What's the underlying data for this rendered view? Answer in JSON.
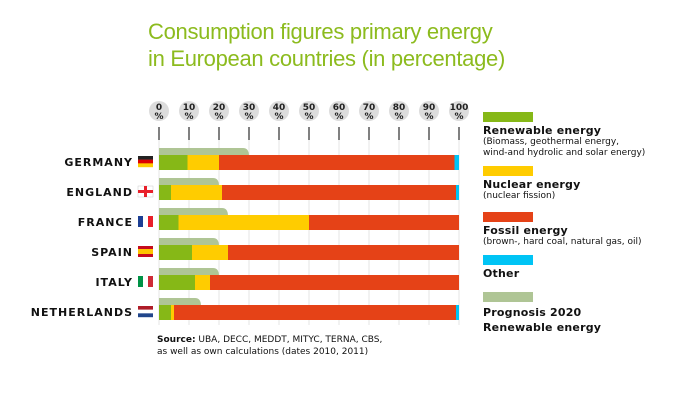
{
  "chart_data": {
    "type": "bar",
    "orientation": "horizontal",
    "stacked": true,
    "title": "Consumption figures primary energy in European countries (in percentage)",
    "title_lines": [
      "Consumption figures primary energy",
      "in European countries (in percentage)"
    ],
    "xlabel": "",
    "ylabel": "",
    "xlim": [
      0,
      100
    ],
    "x_ticks": [
      0,
      10,
      20,
      30,
      40,
      50,
      60,
      70,
      80,
      90,
      100
    ],
    "x_tick_labels": [
      "0\n%",
      "10\n%",
      "20\n%",
      "30\n%",
      "40\n%",
      "50\n%",
      "60\n%",
      "70\n%",
      "80\n%",
      "90\n%",
      "100\n%"
    ],
    "grid": true,
    "legend_position": "right",
    "categories": [
      "GERMANY",
      "ENGLAND",
      "FRANCE",
      "SPAIN",
      "ITALY",
      "NETHERLANDS"
    ],
    "series": [
      {
        "name": "Renewable energy",
        "color": "#86b817",
        "values": [
          9.5,
          4,
          6.5,
          11,
          12,
          4
        ]
      },
      {
        "name": "Nuclear energy",
        "color": "#ffcc00",
        "values": [
          10.5,
          17,
          43.5,
          12,
          5,
          1
        ]
      },
      {
        "name": "Fossil energy",
        "color": "#e54217",
        "values": [
          78.5,
          78,
          50,
          77,
          83,
          94
        ]
      },
      {
        "name": "Other",
        "color": "#00c4f5",
        "values": [
          1.5,
          1,
          0,
          0,
          0,
          1
        ]
      }
    ],
    "prognosis": {
      "name": "Prognosis 2020 Renewable energy",
      "color": "#afc595",
      "values": [
        30,
        20,
        23,
        20,
        20,
        14
      ]
    }
  },
  "flags": {
    "GERMANY": [
      "#222222",
      "#dd0000",
      "#ffcc00"
    ],
    "ENGLAND": "cross",
    "FRANCE": [
      "#1c3f94",
      "#ffffff",
      "#e8202a"
    ],
    "SPAIN": [
      "#c60b1e",
      "#ffc400",
      "#c60b1e"
    ],
    "ITALY": [
      "#009246",
      "#ffffff",
      "#ce2b37"
    ],
    "NETHERLANDS": [
      "#ae1c28",
      "#ffffff",
      "#21468b"
    ]
  },
  "legend": [
    {
      "color": "#86b817",
      "title": "Renewable energy",
      "desc": [
        "(Biomass, geothermal energy,",
        "wind-and hydrolic and solar energy)"
      ]
    },
    {
      "color": "#ffcc00",
      "title": "Nuclear energy",
      "desc": [
        "(nuclear fission)"
      ]
    },
    {
      "color": "#e54217",
      "title": "Fossil energy",
      "desc": [
        "(brown-, hard coal, natural gas, oil)"
      ]
    },
    {
      "color": "#00c4f5",
      "title": "Other",
      "desc": []
    },
    {
      "color": "#afc595",
      "title": "Prognosis 2020",
      "desc": [],
      "title2": "Renewable energy"
    }
  ],
  "source": {
    "label": "Source:",
    "line1": " UBA, DECC, MEDDT, MITYC, TERNA, CBS,",
    "line2": "as well as own calculations (dates 2010, 2011)"
  }
}
